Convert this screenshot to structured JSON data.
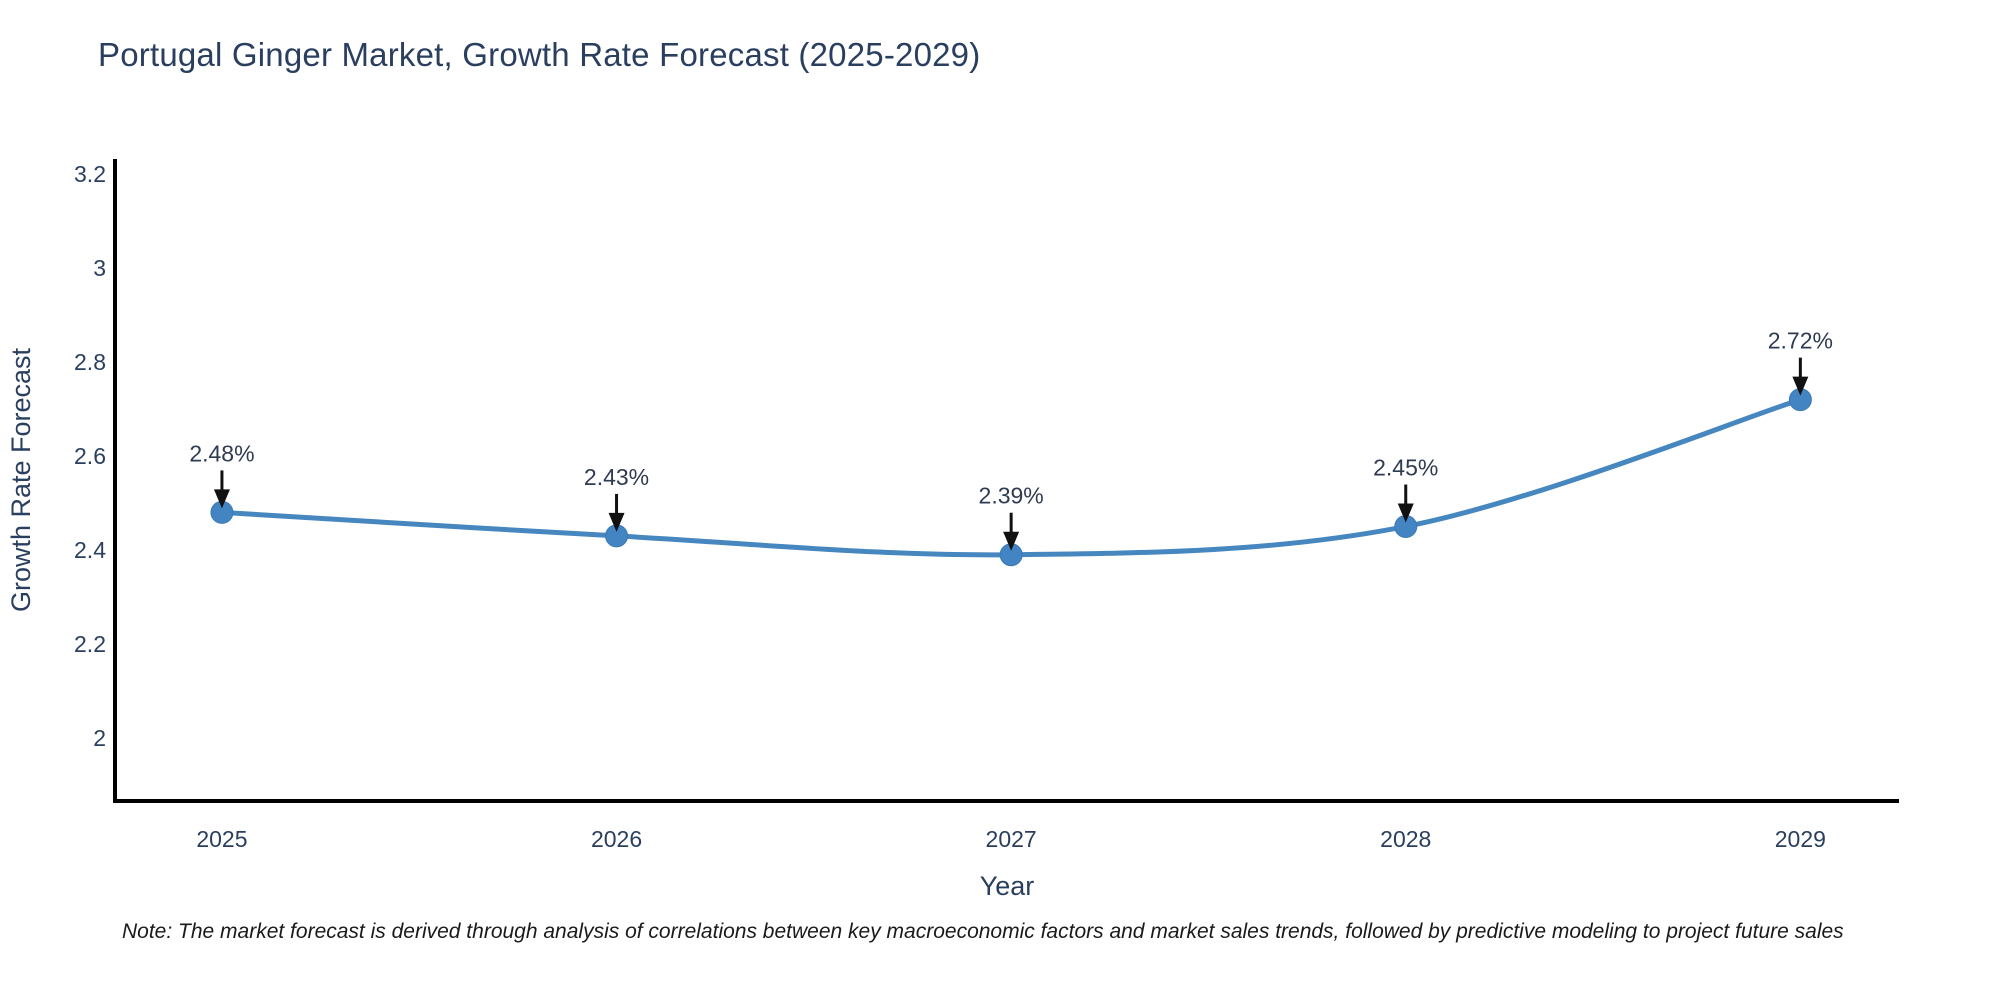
{
  "title": "Portugal Ginger Market, Growth Rate Forecast (2025-2029)",
  "chart_data": {
    "type": "line",
    "title": "Portugal Ginger Market, Growth Rate Forecast (2025-2029)",
    "xlabel": "Year",
    "ylabel": "Growth Rate Forecast",
    "x": [
      2025,
      2026,
      2027,
      2028,
      2029
    ],
    "series": [
      {
        "name": "Growth Rate Forecast",
        "values": [
          2.48,
          2.43,
          2.39,
          2.45,
          2.72
        ],
        "point_labels": [
          "2.48%",
          "2.43%",
          "2.39%",
          "2.45%",
          "2.72%"
        ]
      }
    ],
    "xticks": [
      2025,
      2026,
      2027,
      2028,
      2029
    ],
    "xtick_labels": [
      "2025",
      "2026",
      "2027",
      "2028",
      "2029"
    ],
    "yticks": [
      2,
      2.2,
      2.4,
      2.6,
      2.8,
      3,
      3.2
    ],
    "ytick_labels": [
      "2",
      "2.2",
      "2.4",
      "2.6",
      "2.8",
      "3",
      "3.2"
    ],
    "xlim": [
      2024.729,
      2029.25
    ],
    "ylim": [
      1.866,
      3.232
    ],
    "grid": false,
    "legend_position": "none",
    "line_shape": "spline",
    "line_color": "#4687c0",
    "marker_color": "#4285c2",
    "marker_edge_color": "#3d7ab2",
    "annotation_arrow_color": "#111111",
    "axis_line_color": "#000000",
    "title_color": "#2a3f5f",
    "tick_color": "#2a3f5f"
  },
  "note": {
    "text": "Note: The market forecast is derived through analysis of correlations between key macroeconomic factors and market sales trends, followed by predictive modeling to project future sales"
  }
}
